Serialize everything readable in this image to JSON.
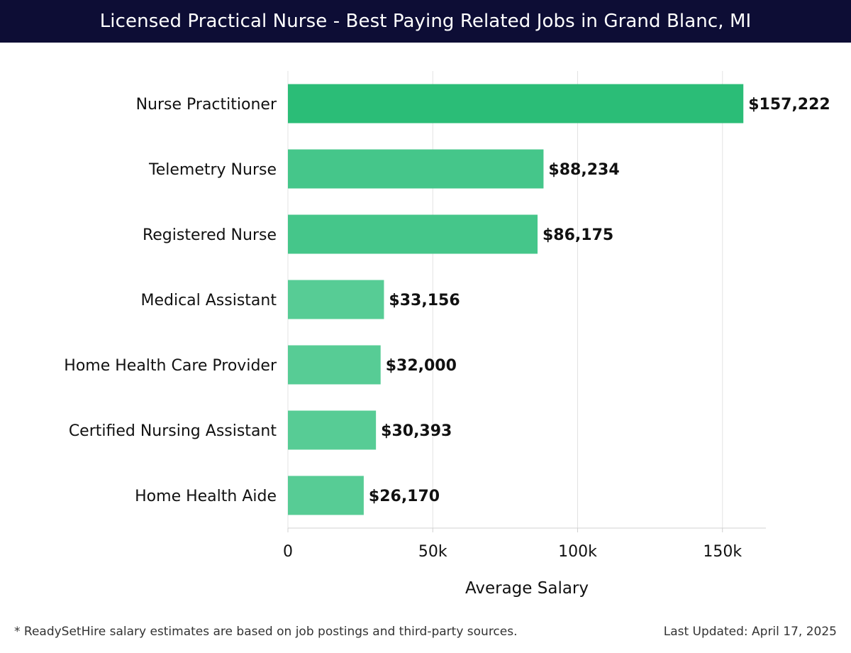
{
  "header": {
    "title": "Licensed Practical Nurse - Best Paying Related Jobs in Grand Blanc, MI"
  },
  "chart_data": {
    "type": "bar",
    "orientation": "horizontal",
    "categories": [
      "Nurse Practitioner",
      "Telemetry Nurse",
      "Registered Nurse",
      "Medical Assistant",
      "Home Health Care Provider",
      "Certified Nursing Assistant",
      "Home Health Aide"
    ],
    "values": [
      157222,
      88234,
      86175,
      33156,
      32000,
      30393,
      26170
    ],
    "value_labels": [
      "$157,222",
      "$88,234",
      "$86,175",
      "$33,156",
      "$32,000",
      "$30,393",
      "$26,170"
    ],
    "xlabel": "Average Salary",
    "ylabel": "",
    "xlim": [
      0,
      165000
    ],
    "xticks": [
      0,
      50000,
      100000,
      150000
    ],
    "xtick_labels": [
      "0",
      "50k",
      "100k",
      "150k"
    ],
    "grid": true,
    "colors": {
      "top_bar": "#2bbd77",
      "mid_bars": "#45c68a",
      "low_bars": "#57cc95",
      "grid": "#e3e3e3"
    }
  },
  "footer": {
    "note": "* ReadySetHire salary estimates are based on job postings and third-party sources.",
    "updated": "Last Updated: April 17, 2025"
  }
}
